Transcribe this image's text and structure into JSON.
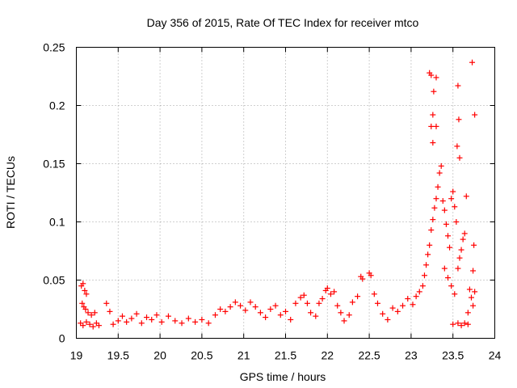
{
  "chart_data": {
    "type": "scatter",
    "title": "Day 356 of 2015, Rate Of TEC Index for receiver mtco",
    "xlabel": "GPS time / hours",
    "ylabel": "ROTI / TECUs",
    "xlim": [
      19,
      24
    ],
    "ylim": [
      0,
      0.25
    ],
    "grid": true,
    "x_ticks": [
      19,
      19.5,
      20,
      20.5,
      21,
      21.5,
      22,
      22.5,
      23,
      23.5,
      24
    ],
    "x_tick_labels": [
      "19",
      "19.5",
      "20",
      "20.5",
      "21",
      "21.5",
      "22",
      "22.5",
      "23",
      "23.5",
      "24"
    ],
    "y_ticks": [
      0,
      0.05,
      0.1,
      0.15,
      0.2,
      0.25
    ],
    "y_tick_labels": [
      "0",
      "0.05",
      "0.1",
      "0.15",
      "0.2",
      "0.25"
    ],
    "marker_color": "#ff0000",
    "marker": "plus",
    "series": [
      {
        "name": "ROTI",
        "points": [
          [
            19.06,
            0.045
          ],
          [
            19.08,
            0.047
          ],
          [
            19.1,
            0.041
          ],
          [
            19.12,
            0.038
          ],
          [
            19.07,
            0.03
          ],
          [
            19.09,
            0.027
          ],
          [
            19.11,
            0.025
          ],
          [
            19.14,
            0.022
          ],
          [
            19.05,
            0.013
          ],
          [
            19.08,
            0.011
          ],
          [
            19.12,
            0.014
          ],
          [
            19.16,
            0.012
          ],
          [
            19.2,
            0.01
          ],
          [
            19.24,
            0.013
          ],
          [
            19.27,
            0.011
          ],
          [
            19.18,
            0.02
          ],
          [
            19.22,
            0.022
          ],
          [
            19.36,
            0.03
          ],
          [
            19.4,
            0.023
          ],
          [
            19.44,
            0.012
          ],
          [
            19.5,
            0.015
          ],
          [
            19.55,
            0.019
          ],
          [
            19.6,
            0.014
          ],
          [
            19.66,
            0.017
          ],
          [
            19.72,
            0.021
          ],
          [
            19.78,
            0.013
          ],
          [
            19.84,
            0.018
          ],
          [
            19.9,
            0.016
          ],
          [
            19.96,
            0.02
          ],
          [
            20.02,
            0.014
          ],
          [
            20.1,
            0.019
          ],
          [
            20.18,
            0.015
          ],
          [
            20.26,
            0.013
          ],
          [
            20.34,
            0.017
          ],
          [
            20.42,
            0.014
          ],
          [
            20.5,
            0.016
          ],
          [
            20.58,
            0.013
          ],
          [
            20.66,
            0.02
          ],
          [
            20.72,
            0.025
          ],
          [
            20.78,
            0.023
          ],
          [
            20.84,
            0.027
          ],
          [
            20.9,
            0.031
          ],
          [
            20.96,
            0.028
          ],
          [
            21.02,
            0.024
          ],
          [
            21.08,
            0.031
          ],
          [
            21.14,
            0.027
          ],
          [
            21.2,
            0.022
          ],
          [
            21.26,
            0.018
          ],
          [
            21.32,
            0.025
          ],
          [
            21.38,
            0.028
          ],
          [
            21.44,
            0.02
          ],
          [
            21.5,
            0.023
          ],
          [
            21.56,
            0.016
          ],
          [
            21.62,
            0.03
          ],
          [
            21.68,
            0.035
          ],
          [
            21.72,
            0.037
          ],
          [
            21.76,
            0.03
          ],
          [
            21.8,
            0.022
          ],
          [
            21.86,
            0.019
          ],
          [
            21.9,
            0.03
          ],
          [
            21.94,
            0.034
          ],
          [
            21.98,
            0.041
          ],
          [
            22.0,
            0.043
          ],
          [
            22.04,
            0.038
          ],
          [
            22.08,
            0.04
          ],
          [
            22.12,
            0.028
          ],
          [
            22.16,
            0.022
          ],
          [
            22.2,
            0.015
          ],
          [
            22.26,
            0.02
          ],
          [
            22.3,
            0.031
          ],
          [
            22.36,
            0.036
          ],
          [
            22.4,
            0.053
          ],
          [
            22.42,
            0.051
          ],
          [
            22.5,
            0.056
          ],
          [
            22.52,
            0.054
          ],
          [
            22.56,
            0.038
          ],
          [
            22.6,
            0.03
          ],
          [
            22.66,
            0.021
          ],
          [
            22.72,
            0.016
          ],
          [
            22.78,
            0.026
          ],
          [
            22.84,
            0.023
          ],
          [
            22.9,
            0.028
          ],
          [
            22.96,
            0.034
          ],
          [
            23.02,
            0.029
          ],
          [
            23.06,
            0.036
          ],
          [
            23.1,
            0.04
          ],
          [
            23.14,
            0.045
          ],
          [
            23.16,
            0.054
          ],
          [
            23.18,
            0.063
          ],
          [
            23.2,
            0.072
          ],
          [
            23.22,
            0.08
          ],
          [
            23.24,
            0.093
          ],
          [
            23.26,
            0.102
          ],
          [
            23.28,
            0.112
          ],
          [
            23.3,
            0.12
          ],
          [
            23.32,
            0.13
          ],
          [
            23.34,
            0.142
          ],
          [
            23.36,
            0.148
          ],
          [
            23.22,
            0.228
          ],
          [
            23.24,
            0.226
          ],
          [
            23.3,
            0.224
          ],
          [
            23.27,
            0.212
          ],
          [
            23.26,
            0.192
          ],
          [
            23.24,
            0.182
          ],
          [
            23.3,
            0.182
          ],
          [
            23.26,
            0.168
          ],
          [
            23.38,
            0.118
          ],
          [
            23.4,
            0.11
          ],
          [
            23.42,
            0.098
          ],
          [
            23.44,
            0.088
          ],
          [
            23.46,
            0.078
          ],
          [
            23.48,
            0.12
          ],
          [
            23.5,
            0.126
          ],
          [
            23.52,
            0.113
          ],
          [
            23.54,
            0.1
          ],
          [
            23.4,
            0.06
          ],
          [
            23.44,
            0.052
          ],
          [
            23.48,
            0.045
          ],
          [
            23.52,
            0.038
          ],
          [
            23.56,
            0.06
          ],
          [
            23.58,
            0.069
          ],
          [
            23.6,
            0.076
          ],
          [
            23.62,
            0.085
          ],
          [
            23.64,
            0.09
          ],
          [
            23.56,
            0.217
          ],
          [
            23.57,
            0.188
          ],
          [
            23.55,
            0.165
          ],
          [
            23.58,
            0.155
          ],
          [
            23.66,
            0.122
          ],
          [
            23.73,
            0.237
          ],
          [
            23.76,
            0.192
          ],
          [
            23.75,
            0.08
          ],
          [
            23.74,
            0.058
          ],
          [
            23.7,
            0.042
          ],
          [
            23.72,
            0.035
          ],
          [
            23.74,
            0.028
          ],
          [
            23.68,
            0.022
          ],
          [
            23.76,
            0.04
          ],
          [
            23.5,
            0.012
          ],
          [
            23.56,
            0.013
          ],
          [
            23.6,
            0.011
          ],
          [
            23.64,
            0.013
          ],
          [
            23.68,
            0.012
          ]
        ]
      }
    ]
  }
}
